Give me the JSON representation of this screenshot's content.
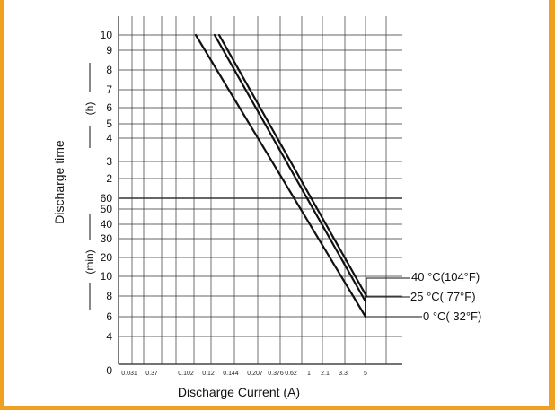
{
  "colors": {
    "background": "#f0a020",
    "panel": "#ffffff",
    "ink": "#111111"
  },
  "chart_data": {
    "type": "line",
    "xlabel": "Discharge Current (A)",
    "ylabel": "Discharge time",
    "units": {
      "hours": "(h)",
      "minutes": "(min)"
    },
    "y_ticks_hours": [
      "10",
      "9",
      "8",
      "7",
      "6",
      "5",
      "4",
      "3",
      "2"
    ],
    "y_ticks_minutes": [
      "60",
      "50",
      "40",
      "30",
      "20",
      "10",
      "8",
      "6",
      "4"
    ],
    "y_zero_label": "0",
    "x_ticks": [
      "0.031",
      "0.37",
      "0.102",
      "0.12",
      "0.144",
      "0.207",
      "0.376",
      "0.62",
      "1",
      "2.1",
      "3.3",
      "5"
    ],
    "series": [
      {
        "name": "40 °C(104°F)",
        "points": [
          [
            "0.102",
            "10 h"
          ],
          [
            "3.3",
            "8 min"
          ]
        ]
      },
      {
        "name": "25 °C( 77°F)",
        "points": [
          [
            "0.102",
            "10 h"
          ],
          [
            "3.3",
            "7.5 min"
          ]
        ]
      },
      {
        "name": "0 °C( 32°F)",
        "points": [
          [
            "0.06",
            "10 h"
          ],
          [
            "3.3",
            "6 min"
          ]
        ]
      }
    ],
    "grid": true
  }
}
